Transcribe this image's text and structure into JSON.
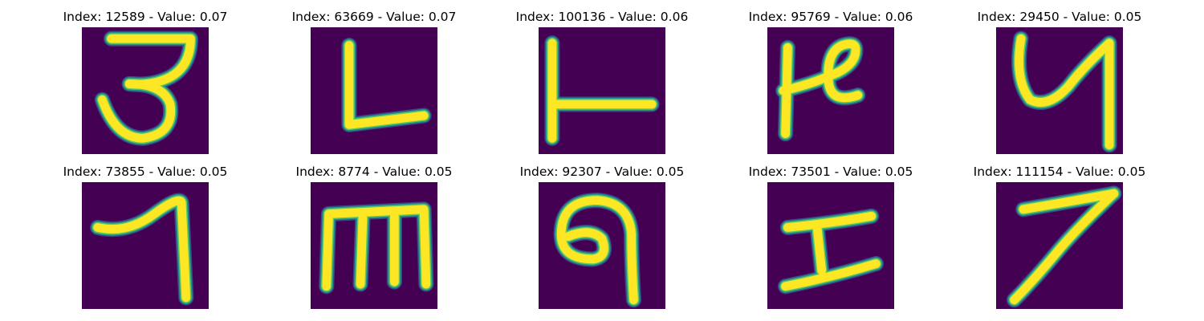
{
  "figure": {
    "background": "#ffffff",
    "image_background": "#440154",
    "stroke_colors": {
      "edge_dark": "#3b528b",
      "edge_mid": "#21918c",
      "edge_light": "#5ec962",
      "core": "#fde725"
    },
    "panels": [
      {
        "title": "Index: 12589 - Value: 0.07",
        "glyph": "3"
      },
      {
        "title": "Index: 63669 - Value: 0.07",
        "glyph": "L"
      },
      {
        "title": "Index: 100136 - Value: 0.06",
        "glyph": "ŀ"
      },
      {
        "title": "Index: 95769 - Value: 0.06",
        "glyph": "P"
      },
      {
        "title": "Index: 29450 - Value: 0.05",
        "glyph": "y"
      },
      {
        "title": "Index: 73855 - Value: 0.05",
        "glyph": "1"
      },
      {
        "title": "Index: 8774 - Value: 0.05",
        "glyph": "m"
      },
      {
        "title": "Index: 92307 - Value: 0.05",
        "glyph": "a"
      },
      {
        "title": "Index: 73501 - Value: 0.05",
        "glyph": "I"
      },
      {
        "title": "Index: 111154 - Value: 0.05",
        "glyph": "7"
      }
    ]
  }
}
